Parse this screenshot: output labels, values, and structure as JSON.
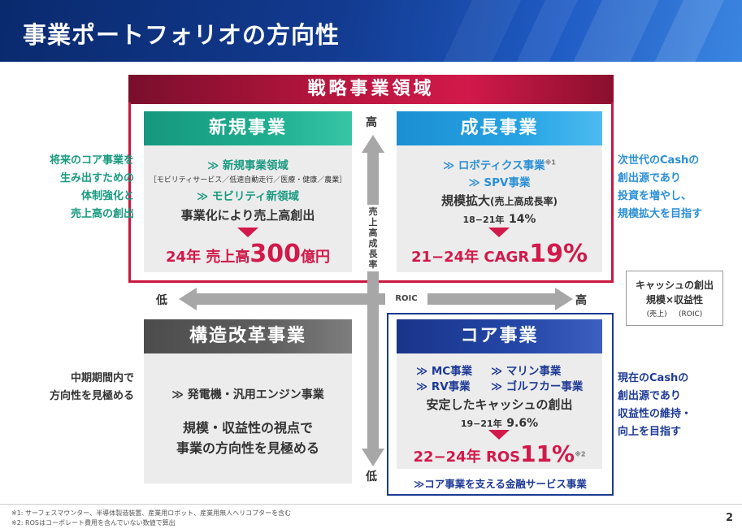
{
  "title": "事業ポートフォリオの方向性",
  "strategic_label": "戦略事業領域",
  "axis": {
    "vertical_label": "売上高成長率",
    "vertical_high": "高",
    "vertical_low": "低",
    "horizontal_label": "ROIC",
    "horizontal_low": "低",
    "horizontal_high": "高"
  },
  "quadrants": {
    "new": {
      "title": "新規事業",
      "line1": "≫ 新規事業領域",
      "line2": "［モビリティサービス／低速自動走行／医療・健康／農業］",
      "line3": "≫ モビリティ新領域",
      "line4": "事業化により売上高創出",
      "target_prefix": "24年 売上高",
      "target_value": "300",
      "target_unit": "億円"
    },
    "growth": {
      "title": "成長事業",
      "line1": "≫ ロボティクス事業",
      "line1_note": "※1",
      "line2": "≫ SPV事業",
      "line3": "規模拡大",
      "line3_sub": "(売上高成長率)",
      "line4_prefix": "18−21年",
      "line4_value": "14%",
      "target_prefix": "21−24年 CAGR",
      "target_value": "19%"
    },
    "reform": {
      "title": "構造改革事業",
      "line1": "≫ 発電機・汎用エンジン事業",
      "line2": "規模・収益性の視点で",
      "line3": "事業の方向性を見極める"
    },
    "core": {
      "title": "コア事業",
      "line1a": "≫ MC事業",
      "line1b": "≫ マリン事業",
      "line2a": "≫ RV事業",
      "line2b": "≫ ゴルフカー事業",
      "line3": "安定したキャッシュの創出",
      "line4_prefix": "19−21年",
      "line4_value": "9.6%",
      "target_prefix": "22−24年 ROS",
      "target_value": "11%",
      "target_note": "※2",
      "footer_link": "≫コア事業を支える金融サービス事業"
    }
  },
  "side_notes": {
    "new": [
      "将来のコア事業を",
      "生み出すための",
      "体制強化と",
      "売上高の創出"
    ],
    "growth": [
      "次世代のCashの",
      "創出源であり",
      "投資を増やし、",
      "規模拡大を目指す"
    ],
    "reform": [
      "中期期間内で",
      "方向性を見極める"
    ],
    "core": [
      "現在のCashの",
      "創出源であり",
      "収益性の維持・",
      "向上を目指す"
    ]
  },
  "legend": {
    "line1": "キャッシュの創出",
    "line2": "規模×収益性",
    "sub_left": "(売上)",
    "sub_right": "(ROIC)"
  },
  "footnotes": [
    "※1: サーフェスマウンター、半導体製造装置、産業用ロボット、産業用無人ヘリコプターを含む",
    "※2: ROSはコーポレート費用を含んでいない数値で算出"
  ],
  "page_number": "2",
  "colors": {
    "header": "#123a8f",
    "strategic": "#c8173f",
    "new": "#1fae90",
    "growth": "#27a3e3",
    "reform": "#5f5f5f",
    "core": "#2447a8",
    "accent_red": "#d1194a"
  }
}
